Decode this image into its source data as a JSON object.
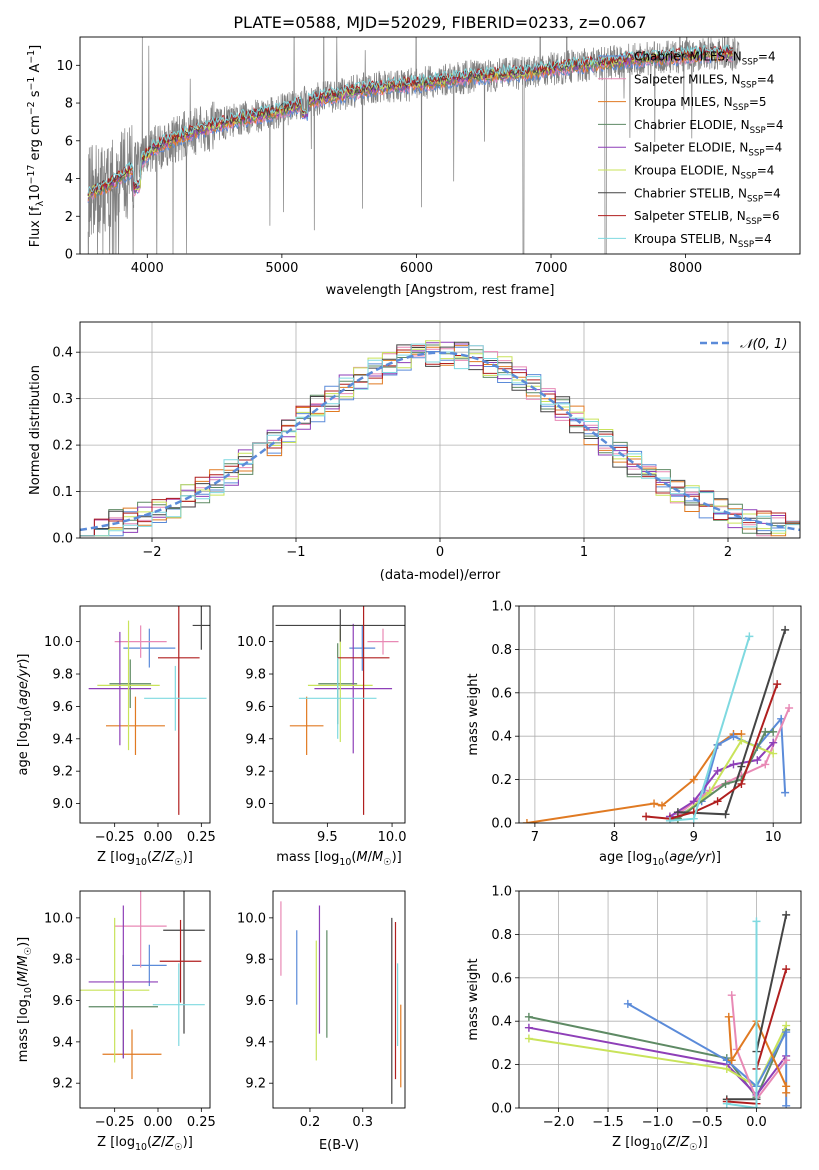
{
  "title": "PLATE=0588, MJD=52029, FIBERID=0233, z=0.067",
  "colors": {
    "chabrier_miles": "#5b8bd9",
    "salpeter_miles": "#e889b5",
    "kroupa_miles": "#e07a22",
    "chabrier_elodie": "#5e8a64",
    "salpeter_elodie": "#8e3fb8",
    "kroupa_elodie": "#c9e35a",
    "chabrier_stelib": "#444444",
    "salpeter_stelib": "#b01f1f",
    "kroupa_stelib": "#7fd9e0",
    "data": "#808080"
  },
  "chart_data": [
    {
      "id": "spectrum",
      "type": "line",
      "xlabel": "wavelength [Angstrom, rest frame]",
      "ylabel_parts": [
        "Flux [f",
        "λ",
        "10",
        "−17",
        " erg cm",
        "−2",
        " s",
        "−1",
        " A",
        "−1",
        "]"
      ],
      "xlim": [
        3500,
        8850
      ],
      "ylim": [
        0,
        11.5
      ],
      "xticks": [
        4000,
        5000,
        6000,
        7000,
        8000
      ],
      "yticks": [
        0,
        2,
        4,
        6,
        8,
        10
      ],
      "grid": false,
      "legend_position": "lower-right",
      "series": [
        {
          "name": "Chabrier MILES, N",
          "sub": "SSP",
          "eq": "=4",
          "key": "chabrier_miles"
        },
        {
          "name": "Salpeter MILES, N",
          "sub": "SSP",
          "eq": "=4",
          "key": "salpeter_miles"
        },
        {
          "name": "Kroupa MILES, N",
          "sub": "SSP",
          "eq": "=5",
          "key": "kroupa_miles"
        },
        {
          "name": "Chabrier ELODIE, N",
          "sub": "SSP",
          "eq": "=4",
          "key": "chabrier_elodie"
        },
        {
          "name": "Salpeter ELODIE, N",
          "sub": "SSP",
          "eq": "=4",
          "key": "salpeter_elodie"
        },
        {
          "name": "Kroupa ELODIE, N",
          "sub": "SSP",
          "eq": "=4",
          "key": "kroupa_elodie"
        },
        {
          "name": "Chabrier STELIB, N",
          "sub": "SSP",
          "eq": "=4",
          "key": "chabrier_stelib"
        },
        {
          "name": "Salpeter STELIB, N",
          "sub": "SSP",
          "eq": "=6",
          "key": "salpeter_stelib"
        },
        {
          "name": "Kroupa STELIB, N",
          "sub": "SSP",
          "eq": "=4",
          "key": "kroupa_stelib"
        }
      ],
      "continuum": [
        [
          3560,
          3.2
        ],
        [
          3700,
          3.6
        ],
        [
          3850,
          4.3
        ],
        [
          3950,
          4.9
        ],
        [
          4050,
          5.6
        ],
        [
          4200,
          6.1
        ],
        [
          4400,
          6.6
        ],
        [
          4600,
          7.0
        ],
        [
          4800,
          7.3
        ],
        [
          5000,
          7.6
        ],
        [
          5200,
          8.1
        ],
        [
          5400,
          8.4
        ],
        [
          5600,
          8.7
        ],
        [
          5800,
          8.9
        ],
        [
          6000,
          9.0
        ],
        [
          6200,
          9.2
        ],
        [
          6400,
          9.4
        ],
        [
          6600,
          9.5
        ],
        [
          6800,
          9.6
        ],
        [
          7000,
          9.8
        ],
        [
          7200,
          10.0
        ],
        [
          7400,
          10.1
        ],
        [
          7600,
          10.3
        ],
        [
          7800,
          10.4
        ],
        [
          8000,
          10.5
        ],
        [
          8200,
          10.6
        ],
        [
          8350,
          10.6
        ]
      ]
    },
    {
      "id": "residuals",
      "type": "histogram",
      "xlabel": "(data-model)/error",
      "ylabel": "Normed distribution",
      "xlim": [
        -2.5,
        2.5
      ],
      "ylim": [
        0,
        0.465
      ],
      "xticks": [
        -2,
        -1,
        0,
        1,
        2
      ],
      "xtick_labels": [
        "−2",
        "−1",
        "0",
        "1",
        "2"
      ],
      "yticks": [
        0.0,
        0.1,
        0.2,
        0.3,
        0.4
      ],
      "ytick_labels": [
        "0.0",
        "0.1",
        "0.2",
        "0.3",
        "0.4"
      ],
      "grid": true,
      "legend_position": "top-right",
      "reference_label": "𝒩(0, 1)"
    },
    {
      "id": "age_vs_z",
      "type": "errorbar",
      "xlabel": "Z [log10(Z/Z☉)]",
      "ylabel": "age [log10(age/yr)]",
      "xlim": [
        -0.45,
        0.3
      ],
      "ylim": [
        8.88,
        10.22
      ],
      "xticks": [
        -0.25,
        0.0,
        0.25
      ],
      "xtick_labels": [
        "−0.25",
        "0.00",
        "0.25"
      ],
      "yticks": [
        9.0,
        9.2,
        9.4,
        9.6,
        9.8,
        10.0
      ],
      "ytick_labels": [
        "9.0",
        "9.2",
        "9.4",
        "9.6",
        "9.8",
        "10.0"
      ],
      "points": [
        {
          "key": "chabrier_miles",
          "x": -0.05,
          "xerr": 0.15,
          "y": 9.96,
          "yerr": 0.12
        },
        {
          "key": "salpeter_miles",
          "x": -0.1,
          "xerr": 0.15,
          "y": 10.0,
          "yerr": 0.1
        },
        {
          "key": "kroupa_miles",
          "x": -0.13,
          "xerr": 0.17,
          "y": 9.48,
          "yerr": 0.18
        },
        {
          "key": "chabrier_elodie",
          "x": -0.16,
          "xerr": 0.12,
          "y": 9.74,
          "yerr": 0.15
        },
        {
          "key": "salpeter_elodie",
          "x": -0.22,
          "xerr": 0.18,
          "y": 9.71,
          "yerr": 0.35
        },
        {
          "key": "kroupa_elodie",
          "x": -0.17,
          "xerr": 0.18,
          "y": 9.73,
          "yerr": 0.4
        },
        {
          "key": "chabrier_stelib",
          "x": 0.25,
          "xerr": 0.05,
          "y": 10.1,
          "yerr": 0.15
        },
        {
          "key": "salpeter_stelib",
          "x": 0.12,
          "xerr": 0.12,
          "y": 9.9,
          "yerr": 0.97
        },
        {
          "key": "kroupa_stelib",
          "x": 0.1,
          "xerr": 0.18,
          "y": 9.65,
          "yerr": 0.2
        }
      ]
    },
    {
      "id": "age_vs_mass",
      "type": "errorbar",
      "xlabel": "mass [log10(M/M☉)]",
      "xlim": [
        9.08,
        10.1
      ],
      "ylim": [
        8.88,
        10.22
      ],
      "xticks": [
        9.5,
        10.0
      ],
      "xtick_labels": [
        "9.5",
        "10.0"
      ],
      "yticks": [
        9.0,
        9.2,
        9.4,
        9.6,
        9.8,
        10.0
      ],
      "ytick_labels": [
        "9.0",
        "9.2",
        "9.4",
        "9.6",
        "9.8",
        "10.0"
      ],
      "points": [
        {
          "key": "chabrier_miles",
          "x": 9.77,
          "xerr": 0.1,
          "y": 9.96,
          "yerr": 0.14
        },
        {
          "key": "salpeter_miles",
          "x": 9.93,
          "xerr": 0.12,
          "y": 10.0,
          "yerr": 0.08
        },
        {
          "key": "kroupa_miles",
          "x": 9.34,
          "xerr": 0.13,
          "y": 9.48,
          "yerr": 0.18
        },
        {
          "key": "chabrier_elodie",
          "x": 9.58,
          "xerr": 0.15,
          "y": 9.74,
          "yerr": 0.25
        },
        {
          "key": "salpeter_elodie",
          "x": 9.7,
          "xerr": 0.3,
          "y": 9.71,
          "yerr": 0.4
        },
        {
          "key": "kroupa_elodie",
          "x": 9.6,
          "xerr": 0.25,
          "y": 9.73,
          "yerr": 0.35
        },
        {
          "key": "chabrier_stelib",
          "x": 9.6,
          "xerr": 0.5,
          "y": 10.1,
          "yerr": 0.1
        },
        {
          "key": "salpeter_stelib",
          "x": 9.78,
          "xerr": 0.2,
          "y": 9.9,
          "yerr": 0.97
        },
        {
          "key": "kroupa_stelib",
          "x": 9.58,
          "xerr": 0.3,
          "y": 9.65,
          "yerr": 0.25
        }
      ]
    },
    {
      "id": "mass_weight_vs_age",
      "type": "line",
      "xlabel": "age [log10(age/yr)]",
      "ylabel": "mass weight",
      "xlim": [
        6.8,
        10.35
      ],
      "ylim": [
        0.0,
        1.0
      ],
      "xticks": [
        7,
        8,
        9,
        10
      ],
      "xtick_labels": [
        "7",
        "8",
        "9",
        "10"
      ],
      "yticks": [
        0.0,
        0.2,
        0.4,
        0.6,
        0.8,
        1.0
      ],
      "ytick_labels": [
        "0.0",
        "0.2",
        "0.4",
        "0.6",
        "0.8",
        "1.0"
      ],
      "grid": true,
      "series": [
        {
          "key": "kroupa_miles",
          "x": [
            6.9,
            8.5,
            8.6,
            9.0,
            9.3,
            9.5,
            9.6
          ],
          "y": [
            0.0,
            0.09,
            0.08,
            0.2,
            0.36,
            0.41,
            0.41
          ]
        },
        {
          "key": "chabrier_miles",
          "x": [
            8.8,
            9.1,
            9.3,
            9.5,
            9.8,
            10.1,
            10.15
          ],
          "y": [
            0.03,
            0.1,
            0.36,
            0.4,
            0.35,
            0.48,
            0.14
          ]
        },
        {
          "key": "salpeter_miles",
          "x": [
            8.8,
            9.2,
            9.6,
            9.9,
            10.2
          ],
          "y": [
            0.04,
            0.15,
            0.22,
            0.27,
            0.53
          ]
        },
        {
          "key": "salpeter_elodie",
          "x": [
            8.7,
            9.0,
            9.3,
            9.5,
            9.8,
            10.0
          ],
          "y": [
            0.03,
            0.1,
            0.24,
            0.27,
            0.29,
            0.37
          ]
        },
        {
          "key": "kroupa_elodie",
          "x": [
            8.8,
            9.2,
            9.6,
            10.0
          ],
          "y": [
            0.02,
            0.14,
            0.38,
            0.32
          ]
        },
        {
          "key": "chabrier_elodie",
          "x": [
            8.8,
            9.4,
            9.6,
            9.9,
            10.0
          ],
          "y": [
            0.02,
            0.18,
            0.2,
            0.42,
            0.42
          ]
        },
        {
          "key": "chabrier_stelib",
          "x": [
            8.8,
            9.4,
            9.6,
            10.15
          ],
          "y": [
            0.05,
            0.04,
            0.26,
            0.89
          ]
        },
        {
          "key": "salpeter_stelib",
          "x": [
            8.4,
            8.7,
            9.0,
            9.3,
            9.6,
            10.05
          ],
          "y": [
            0.03,
            0.02,
            0.05,
            0.1,
            0.18,
            0.64
          ]
        },
        {
          "key": "kroupa_stelib",
          "x": [
            8.7,
            9.0,
            9.7
          ],
          "y": [
            0.01,
            0.02,
            0.86
          ]
        }
      ]
    },
    {
      "id": "mass_vs_z",
      "type": "errorbar",
      "xlabel": "Z [log10(Z/Z☉)]",
      "ylabel": "mass [log10(M/M☉)]",
      "xlim": [
        -0.45,
        0.3
      ],
      "ylim": [
        9.08,
        10.13
      ],
      "xticks": [
        -0.25,
        0.0,
        0.25
      ],
      "xtick_labels": [
        "−0.25",
        "0.00",
        "0.25"
      ],
      "yticks": [
        9.2,
        9.4,
        9.6,
        9.8,
        10.0
      ],
      "ytick_labels": [
        "9.2",
        "9.4",
        "9.6",
        "9.8",
        "10.0"
      ],
      "points": [
        {
          "key": "chabrier_miles",
          "x": -0.05,
          "xerr": 0.1,
          "y": 9.77,
          "yerr": 0.1
        },
        {
          "key": "salpeter_miles",
          "x": -0.1,
          "xerr": 0.15,
          "y": 9.96,
          "yerr": 0.2
        },
        {
          "key": "kroupa_miles",
          "x": -0.15,
          "xerr": 0.17,
          "y": 9.34,
          "yerr": 0.12
        },
        {
          "key": "chabrier_elodie",
          "x": -0.2,
          "xerr": 0.2,
          "y": 9.57,
          "yerr": 0.25
        },
        {
          "key": "salpeter_elodie",
          "x": -0.2,
          "xerr": 0.2,
          "y": 9.69,
          "yerr": 0.37
        },
        {
          "key": "kroupa_elodie",
          "x": -0.25,
          "xerr": 0.2,
          "y": 9.65,
          "yerr": 0.35
        },
        {
          "key": "chabrier_stelib",
          "x": 0.15,
          "xerr": 0.12,
          "y": 9.94,
          "yerr": 0.5
        },
        {
          "key": "salpeter_stelib",
          "x": 0.13,
          "xerr": 0.12,
          "y": 9.79,
          "yerr": 0.2
        },
        {
          "key": "kroupa_stelib",
          "x": 0.12,
          "xerr": 0.15,
          "y": 9.58,
          "yerr": 0.2
        }
      ]
    },
    {
      "id": "mass_vs_ebv",
      "type": "errorbar",
      "xlabel": "E(B-V)",
      "xlim": [
        0.13,
        0.38
      ],
      "ylim": [
        9.08,
        10.13
      ],
      "xticks": [
        0.2,
        0.3
      ],
      "xtick_labels": [
        "0.2",
        "0.3"
      ],
      "yticks": [
        9.2,
        9.4,
        9.6,
        9.8,
        10.0
      ],
      "ytick_labels": [
        "9.2",
        "9.4",
        "9.6",
        "9.8",
        "10.0"
      ],
      "points": [
        {
          "key": "chabrier_miles",
          "x": 0.175,
          "y": 9.76,
          "yerr": 0.18
        },
        {
          "key": "salpeter_miles",
          "x": 0.145,
          "y": 9.9,
          "yerr": 0.18
        },
        {
          "key": "kroupa_miles",
          "x": 0.372,
          "y": 9.38,
          "yerr": 0.2
        },
        {
          "key": "chabrier_elodie",
          "x": 0.232,
          "y": 9.68,
          "yerr": 0.26
        },
        {
          "key": "salpeter_elodie",
          "x": 0.218,
          "y": 9.75,
          "yerr": 0.31
        },
        {
          "key": "kroupa_elodie",
          "x": 0.212,
          "y": 9.6,
          "yerr": 0.29
        },
        {
          "key": "chabrier_stelib",
          "x": 0.355,
          "y": 9.55,
          "yerr": 0.45
        },
        {
          "key": "salpeter_stelib",
          "x": 0.362,
          "y": 9.6,
          "yerr": 0.38
        },
        {
          "key": "kroupa_stelib",
          "x": 0.366,
          "y": 9.58,
          "yerr": 0.2
        }
      ]
    },
    {
      "id": "mass_weight_vs_z",
      "type": "line",
      "xlabel": "Z [log10(Z/Z☉)]",
      "ylabel": "mass weight",
      "xlim": [
        -2.4,
        0.45
      ],
      "ylim": [
        0.0,
        1.0
      ],
      "xticks": [
        -2.0,
        -1.5,
        -1.0,
        -0.5,
        0.0
      ],
      "xtick_labels": [
        "−2.0",
        "−1.5",
        "−1.0",
        "−0.5",
        "0.0"
      ],
      "yticks": [
        0.0,
        0.2,
        0.4,
        0.6,
        0.8,
        1.0
      ],
      "ytick_labels": [
        "0.0",
        "0.2",
        "0.4",
        "0.6",
        "0.8",
        "1.0"
      ],
      "grid": true,
      "series": [
        {
          "key": "chabrier_elodie",
          "x": [
            -2.3,
            -0.3,
            0.0,
            0.3
          ],
          "y": [
            0.42,
            0.23,
            0.05,
            0.36
          ]
        },
        {
          "key": "salpeter_elodie",
          "x": [
            -2.3,
            -0.3,
            0.0,
            0.3
          ],
          "y": [
            0.37,
            0.2,
            0.06,
            0.24
          ]
        },
        {
          "key": "kroupa_elodie",
          "x": [
            -2.3,
            -0.3,
            0.0,
            0.3
          ],
          "y": [
            0.32,
            0.18,
            0.1,
            0.38
          ]
        },
        {
          "key": "chabrier_miles",
          "x": [
            -1.3,
            -0.3,
            0.0,
            0.3,
            0.3
          ],
          "y": [
            0.48,
            0.22,
            0.1,
            0.35,
            0.01
          ]
        },
        {
          "key": "salpeter_miles",
          "x": [
            -0.25,
            -0.2,
            0.0,
            0.3
          ],
          "y": [
            0.52,
            0.27,
            0.04,
            0.22
          ]
        },
        {
          "key": "kroupa_miles",
          "x": [
            -0.28,
            -0.25,
            0.0,
            0.3,
            0.3
          ],
          "y": [
            0.42,
            0.22,
            0.4,
            0.1,
            0.07
          ]
        },
        {
          "key": "chabrier_stelib",
          "x": [
            -0.3,
            0.0,
            0.0,
            0.3
          ],
          "y": [
            0.04,
            0.04,
            0.26,
            0.89
          ]
        },
        {
          "key": "salpeter_stelib",
          "x": [
            -0.3,
            0.0,
            0.0,
            0.3
          ],
          "y": [
            0.03,
            0.02,
            0.18,
            0.64
          ]
        },
        {
          "key": "kroupa_stelib",
          "x": [
            -0.3,
            0.0,
            0.0
          ],
          "y": [
            0.02,
            0.0,
            0.86
          ]
        }
      ]
    }
  ]
}
